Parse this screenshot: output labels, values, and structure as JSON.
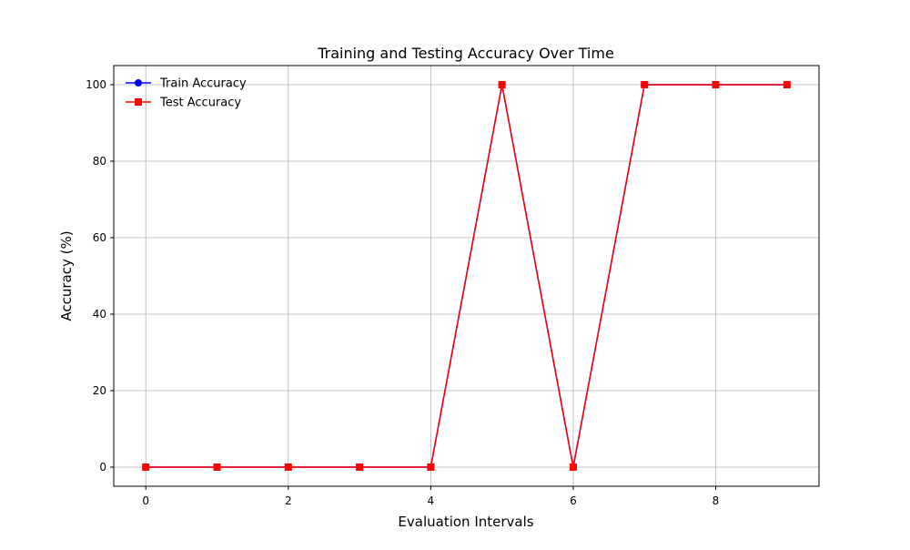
{
  "chart_data": {
    "type": "line",
    "title": "Training and Testing Accuracy Over Time",
    "xlabel": "Evaluation Intervals",
    "ylabel": "Accuracy (%)",
    "x": [
      0,
      1,
      2,
      3,
      4,
      5,
      6,
      7,
      8,
      9
    ],
    "xlim": [
      -0.45,
      9.45
    ],
    "ylim": [
      -5,
      105
    ],
    "xticks": [
      0,
      2,
      4,
      6,
      8
    ],
    "yticks": [
      0,
      20,
      40,
      60,
      80,
      100
    ],
    "grid": true,
    "legend_position": "top-left",
    "series": [
      {
        "name": "Train Accuracy",
        "color": "#0000ff",
        "marker": "circle",
        "values": [
          0,
          0,
          0,
          0,
          0,
          100,
          0,
          100,
          100,
          100
        ]
      },
      {
        "name": "Test Accuracy",
        "color": "#ff0000",
        "marker": "square",
        "values": [
          0,
          0,
          0,
          0,
          0,
          100,
          0,
          100,
          100,
          100
        ]
      }
    ]
  }
}
